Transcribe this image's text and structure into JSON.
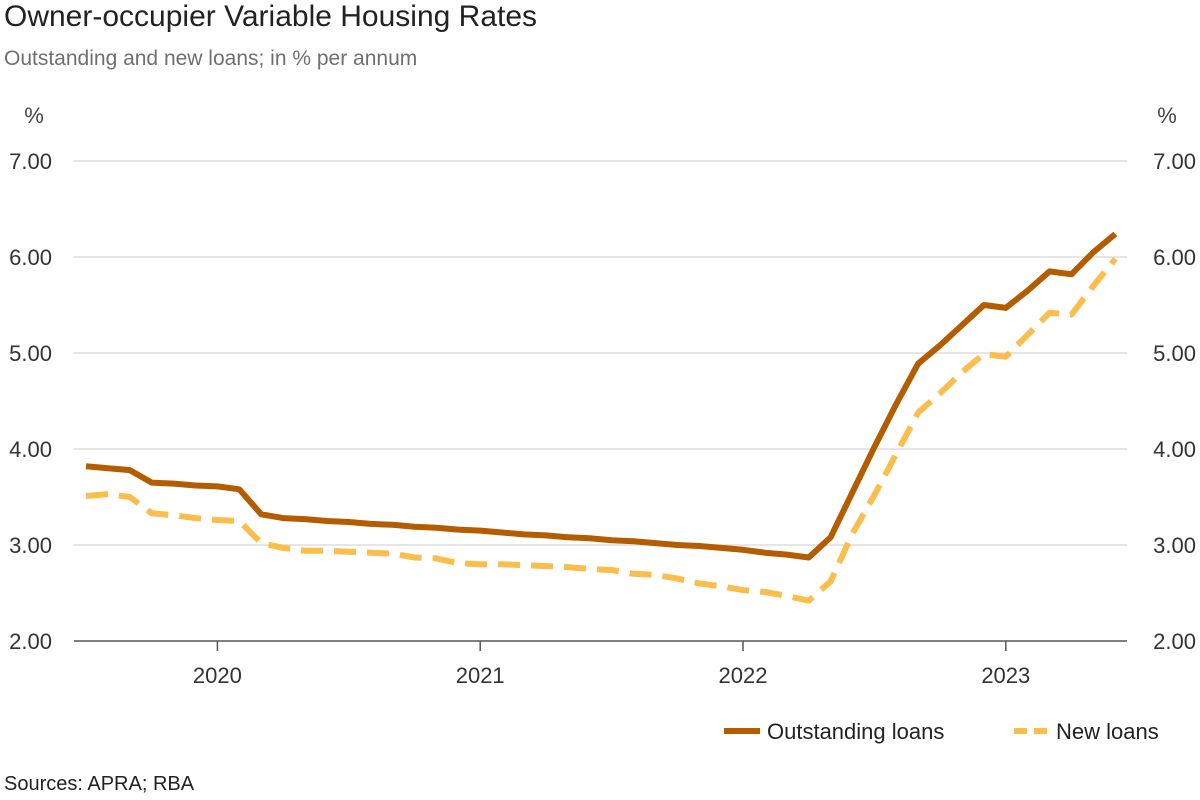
{
  "header": {
    "title": "Owner-occupier Variable Housing Rates",
    "subtitle": "Outstanding and new loans; in % per annum"
  },
  "footer": {
    "source": "Sources: APRA; RBA"
  },
  "colors": {
    "outstanding": "#b35c00",
    "new": "#fbbd4c",
    "grid": "#dddddd",
    "axis": "#555555"
  },
  "chart_data": {
    "type": "line",
    "title": "Owner-occupier Variable Housing Rates",
    "subtitle": "Outstanding and new loans; in % per annum",
    "y_unit_left": "%",
    "y_unit_right": "%",
    "ylim": [
      2,
      7
    ],
    "y_ticks": [
      "7.00",
      "6.00",
      "5.00",
      "4.00",
      "3.00",
      "2.00"
    ],
    "y_tick_values": [
      7,
      6,
      5,
      4,
      3,
      2
    ],
    "xlim": [
      "2019-07",
      "2023-06"
    ],
    "x_ticks": [
      "2020",
      "2021",
      "2022",
      "2023"
    ],
    "x_tick_positions": [
      "2020-01",
      "2021-01",
      "2022-01",
      "2023-01"
    ],
    "grid": true,
    "legend_position": "bottom-right",
    "x": [
      "2019-07",
      "2019-08",
      "2019-09",
      "2019-10",
      "2019-11",
      "2019-12",
      "2020-01",
      "2020-02",
      "2020-03",
      "2020-04",
      "2020-05",
      "2020-06",
      "2020-07",
      "2020-08",
      "2020-09",
      "2020-10",
      "2020-11",
      "2020-12",
      "2021-01",
      "2021-02",
      "2021-03",
      "2021-04",
      "2021-05",
      "2021-06",
      "2021-07",
      "2021-08",
      "2021-09",
      "2021-10",
      "2021-11",
      "2021-12",
      "2022-01",
      "2022-02",
      "2022-03",
      "2022-04",
      "2022-05",
      "2022-06",
      "2022-07",
      "2022-08",
      "2022-09",
      "2022-10",
      "2022-11",
      "2022-12",
      "2023-01",
      "2023-02",
      "2023-03",
      "2023-04",
      "2023-05",
      "2023-06"
    ],
    "series": [
      {
        "name": "Outstanding loans",
        "style": "solid",
        "values": [
          3.82,
          3.8,
          3.78,
          3.65,
          3.64,
          3.62,
          3.61,
          3.58,
          3.32,
          3.28,
          3.27,
          3.25,
          3.24,
          3.22,
          3.21,
          3.19,
          3.18,
          3.16,
          3.15,
          3.13,
          3.11,
          3.1,
          3.08,
          3.07,
          3.05,
          3.04,
          3.02,
          3.0,
          2.99,
          2.97,
          2.95,
          2.92,
          2.9,
          2.87,
          3.08,
          3.55,
          4.02,
          4.47,
          4.89,
          5.08,
          5.29,
          5.5,
          5.47,
          5.65,
          5.85,
          5.82,
          6.05,
          6.24
        ]
      },
      {
        "name": "New loans",
        "style": "dashed",
        "values": [
          3.51,
          3.53,
          3.5,
          3.33,
          3.31,
          3.28,
          3.26,
          3.25,
          3.02,
          2.97,
          2.94,
          2.94,
          2.93,
          2.92,
          2.91,
          2.87,
          2.86,
          2.81,
          2.8,
          2.8,
          2.79,
          2.78,
          2.77,
          2.75,
          2.74,
          2.7,
          2.69,
          2.65,
          2.6,
          2.57,
          2.53,
          2.51,
          2.47,
          2.42,
          2.62,
          3.12,
          3.52,
          3.95,
          4.38,
          4.58,
          4.8,
          4.99,
          4.96,
          5.19,
          5.42,
          5.4,
          5.7,
          5.98
        ]
      }
    ]
  }
}
